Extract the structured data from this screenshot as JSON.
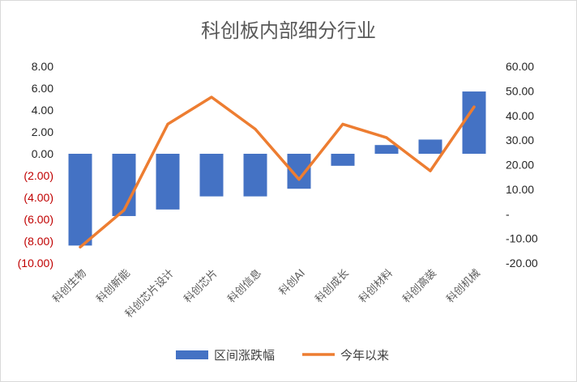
{
  "chart_data": {
    "type": "bar+line",
    "title": "科创板内部细分行业",
    "categories": [
      "科创生物",
      "科创新能",
      "科创芯片设计",
      "科创芯片",
      "科创信息",
      "科创AI",
      "科创成长",
      "科创材料",
      "科创高装",
      "科创机械"
    ],
    "series": [
      {
        "name": "区间涨跌幅",
        "type": "bar",
        "axis": "left",
        "color": "#4472c4",
        "values": [
          -8.4,
          -5.7,
          -5.1,
          -3.9,
          -3.9,
          -3.2,
          -1.1,
          0.8,
          1.3,
          5.7
        ]
      },
      {
        "name": "今年以来",
        "type": "line",
        "axis": "right",
        "color": "#ed7d31",
        "values": [
          -13.5,
          1.5,
          36.5,
          47.5,
          34.5,
          14.0,
          36.5,
          31.0,
          17.5,
          43.5
        ]
      }
    ],
    "left_axis": {
      "ylim": [
        -10,
        8
      ],
      "ticks": [
        8,
        6,
        4,
        2,
        0,
        -2,
        -4,
        -6,
        -8,
        -10
      ],
      "tick_labels": [
        "8.00",
        "6.00",
        "4.00",
        "2.00",
        "0.00",
        "(2.00)",
        "(4.00)",
        "(6.00)",
        "(8.00)",
        "(10.00)"
      ],
      "negative_color": "#c00000"
    },
    "right_axis": {
      "ylim": [
        -20,
        60
      ],
      "ticks": [
        60,
        50,
        40,
        30,
        20,
        10,
        0,
        -10,
        -20
      ],
      "tick_labels": [
        "60.00",
        "50.00",
        "40.00",
        "30.00",
        "20.00",
        "10.00",
        "-",
        "-10.00",
        "-20.00"
      ]
    },
    "grid": false,
    "legend_position": "bottom"
  }
}
